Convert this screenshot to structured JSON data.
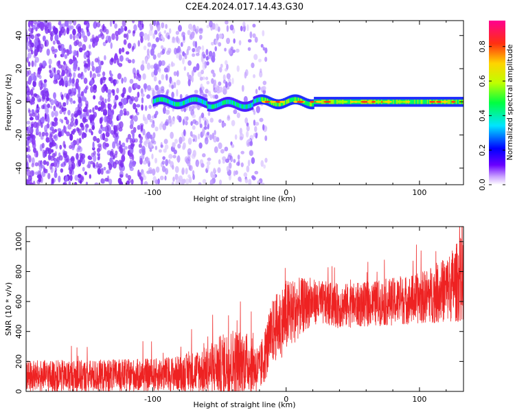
{
  "figure_title": "C2E4.2024.017.14.43.G30",
  "colors": {
    "snr_line": "#ee2222",
    "spectrogram_scatter": "#7a2cf0",
    "axis": "#000000"
  },
  "chart_data": [
    {
      "type": "heatmap",
      "xlabel": "Height of straight line (km)",
      "ylabel": "Frequency (Hz)",
      "xlim": [
        -195,
        133
      ],
      "ylim": [
        -50,
        49
      ],
      "x_ticks": [
        -100,
        0,
        100
      ],
      "y_ticks": [
        -40,
        -20,
        0,
        20,
        40
      ],
      "colorscale": "rainbow (0 = white, 1 = magenta)",
      "colorbar": {
        "label": "Normalized spectral amplitude",
        "range": [
          0,
          0.95
        ],
        "ticks": [
          0.0,
          0.2,
          0.4,
          0.6,
          0.8
        ]
      },
      "features": {
        "noise_region_km": [
          -195,
          -20
        ],
        "signal_band_start_km": -100,
        "signal_band_center_hz": 0,
        "signal_band_halfwidth_hz": 3
      }
    },
    {
      "type": "line",
      "xlabel": "Height of straight line (km)",
      "ylabel": "SNR (10 * v/v)",
      "xlim": [
        -195,
        133
      ],
      "ylim": [
        0,
        1100
      ],
      "x_ticks": [
        -100,
        0,
        100
      ],
      "y_ticks": [
        0,
        200,
        400,
        600,
        800,
        1000
      ],
      "series": [
        {
          "x": [
            -195,
            -150,
            -100,
            -80,
            -60,
            -50,
            -40,
            -30,
            -20,
            -10,
            0,
            10,
            20,
            40,
            60,
            80,
            100,
            120,
            133
          ],
          "y_mean": [
            100,
            100,
            110,
            120,
            140,
            170,
            190,
            200,
            140,
            400,
            500,
            560,
            600,
            570,
            580,
            600,
            620,
            680,
            760
          ],
          "y_spread": [
            110,
            110,
            110,
            120,
            160,
            200,
            240,
            200,
            160,
            220,
            250,
            200,
            150,
            150,
            150,
            160,
            170,
            220,
            300
          ]
        }
      ]
    }
  ]
}
